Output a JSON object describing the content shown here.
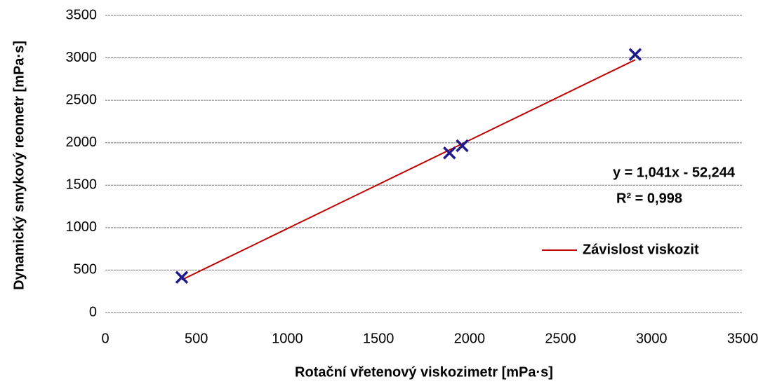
{
  "chart_data": {
    "type": "scatter",
    "x_label": "Rotační vřetenový viskozimetr [mPa·s]",
    "y_label": "Dynamický smykový reometr [mPa·s]",
    "series": [
      {
        "color": "#1f1a8c",
        "x": [
          420,
          1890,
          1960,
          2910
        ],
        "values": [
          415,
          1880,
          1965,
          3040
        ]
      }
    ],
    "trendline": {
      "name": "Závislost viskozit",
      "color": "#c00000",
      "slope": 1.041,
      "intercept": -52.244,
      "equation": "y = 1,041x - 52,244",
      "r2_label": "R² = 0,998"
    },
    "xlim": [
      0,
      3500
    ],
    "xticks": [
      0,
      500,
      1000,
      1500,
      2000,
      2500,
      3000,
      3500
    ],
    "ylim": [
      0,
      3500
    ],
    "yticks": [
      0,
      500,
      1000,
      1500,
      2000,
      2500,
      3000,
      3500
    ],
    "grid": true
  }
}
